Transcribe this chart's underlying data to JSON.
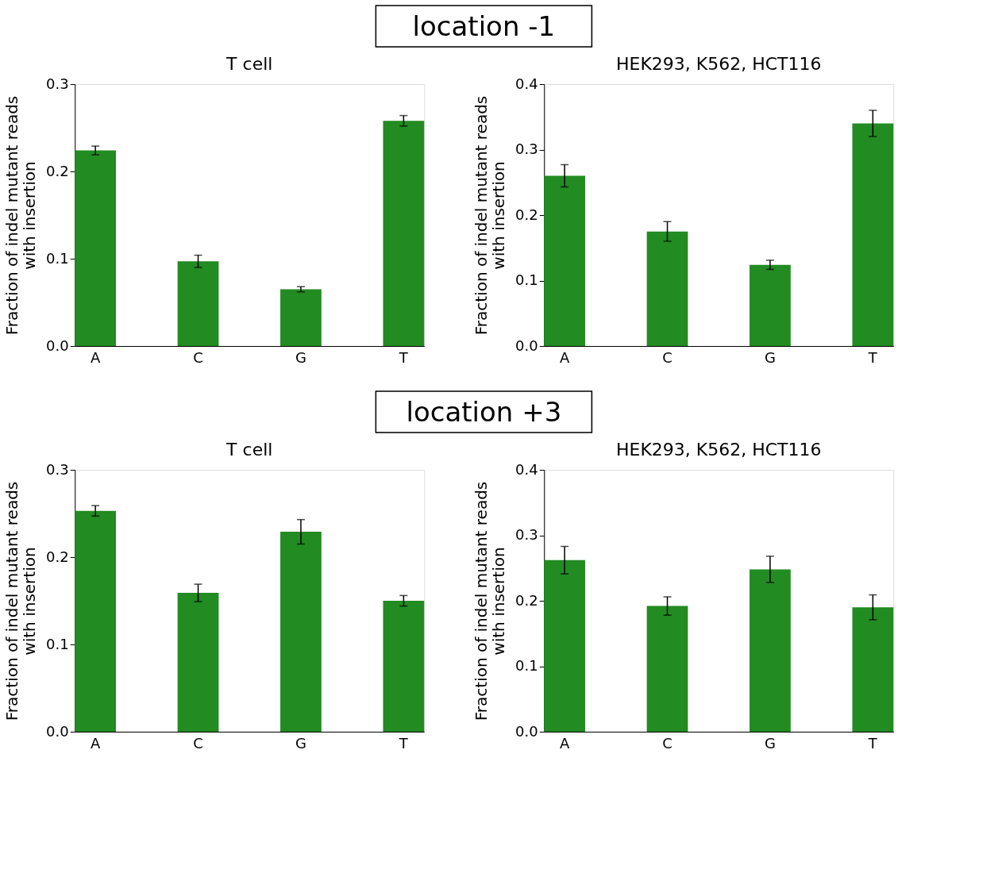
{
  "chart_data": [
    {
      "type": "bar",
      "title": "T cell",
      "annotations": [
        "location -1"
      ],
      "ylabel": "Fraction of indel mutant reads\nwith insertion",
      "categories": [
        "A",
        "C",
        "G",
        "T"
      ],
      "values": [
        0.224,
        0.097,
        0.065,
        0.258
      ],
      "errors": [
        0.005,
        0.007,
        0.003,
        0.006
      ],
      "color": "#228b22",
      "ylim": [
        0,
        0.3
      ],
      "yticks": [
        {
          "value": 0,
          "label": "0.0"
        },
        0.1,
        0.2,
        0.3
      ],
      "grid": false
    },
    {
      "type": "bar",
      "title": "HEK293, K562, HCT116",
      "ylabel": "Fraction of indel mutant reads\nwith insertion",
      "categories": [
        "A",
        "C",
        "G",
        "T"
      ],
      "values": [
        0.26,
        0.175,
        0.124,
        0.34
      ],
      "errors": [
        0.017,
        0.015,
        0.007,
        0.02
      ],
      "color": "#228b22",
      "ylim": [
        0,
        0.4
      ],
      "yticks": [
        {
          "value": 0,
          "label": "0.0"
        },
        0.1,
        0.2,
        0.3,
        0.4
      ],
      "grid": false
    },
    {
      "type": "bar",
      "title": "T cell",
      "annotations": [
        "location +3"
      ],
      "ylabel": "Fraction of indel mutant reads\nwith insertion",
      "categories": [
        "A",
        "C",
        "G",
        "T"
      ],
      "values": [
        0.253,
        0.159,
        0.229,
        0.15
      ],
      "errors": [
        0.006,
        0.01,
        0.014,
        0.006
      ],
      "color": "#228b22",
      "ylim": [
        0,
        0.3
      ],
      "yticks": [
        {
          "value": 0,
          "label": "0.0"
        },
        0.1,
        0.2,
        0.3
      ],
      "grid": false
    },
    {
      "type": "bar",
      "title": "HEK293, K562, HCT116",
      "ylabel": "Fraction of indel mutant reads\nwith insertion",
      "categories": [
        "A",
        "C",
        "G",
        "T"
      ],
      "values": [
        0.262,
        0.192,
        0.248,
        0.19
      ],
      "errors": [
        0.021,
        0.014,
        0.02,
        0.019
      ],
      "color": "#228b22",
      "ylim": [
        0,
        0.4
      ],
      "yticks": [
        {
          "value": 0,
          "label": "0.0"
        },
        0.1,
        0.2,
        0.3,
        0.4
      ],
      "grid": false
    }
  ]
}
